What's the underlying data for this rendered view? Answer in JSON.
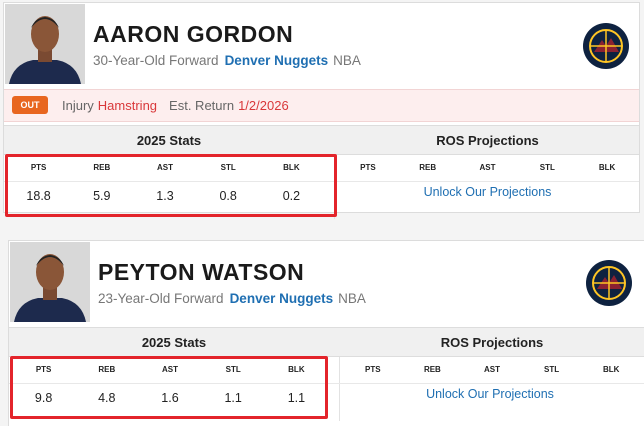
{
  "players": [
    {
      "name": "AARON GORDON",
      "description": "30-Year-Old Forward",
      "team": "Denver Nuggets",
      "league": "NBA",
      "injury": {
        "status": "OUT",
        "label": "Injury",
        "type": "Hamstring",
        "return_label": "Est. Return",
        "return_date": "1/2/2026"
      },
      "stats": {
        "title": "2025 Stats",
        "columns": [
          "PTS",
          "REB",
          "AST",
          "STL",
          "BLK"
        ],
        "values": [
          18.8,
          5.9,
          1.3,
          0.8,
          0.2
        ]
      },
      "projections": {
        "title": "ROS Projections",
        "columns": [
          "PTS",
          "REB",
          "AST",
          "STL",
          "BLK"
        ],
        "cta": "Unlock Our Projections"
      }
    },
    {
      "name": "PEYTON WATSON",
      "description": "23-Year-Old Forward",
      "team": "Denver Nuggets",
      "league": "NBA",
      "stats": {
        "title": "2025 Stats",
        "columns": [
          "PTS",
          "REB",
          "AST",
          "STL",
          "BLK"
        ],
        "values": [
          9.8,
          4.8,
          1.6,
          1.1,
          1.1
        ]
      },
      "projections": {
        "title": "ROS Projections",
        "columns": [
          "PTS",
          "REB",
          "AST",
          "STL",
          "BLK"
        ],
        "cta": "Unlock Our Projections"
      }
    }
  ]
}
